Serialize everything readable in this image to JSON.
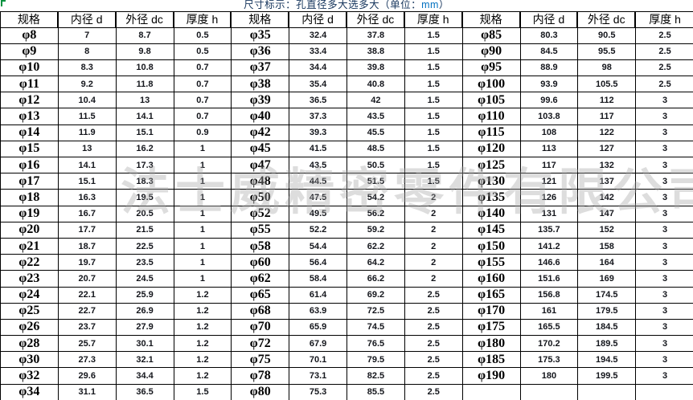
{
  "title": {
    "prefix": "尺寸标示：孔直径多大选多大（单位：",
    "unit": "mm",
    "suffix": "）"
  },
  "watermark": "法士威精密零件有限公司",
  "colors": {
    "title_navy": "#17365D",
    "unit_blue": "#0070C0",
    "border_black": "#000000",
    "watermark_gray": "#A8A8A8",
    "corner_green": "#00923F"
  },
  "table": {
    "headers": [
      "规格",
      "内径 d",
      "外径 dc",
      "厚度 h"
    ],
    "groups": [
      {
        "rows": [
          [
            "φ8",
            "7",
            "8.7",
            "0.5"
          ],
          [
            "φ9",
            "8",
            "9.8",
            "0.5"
          ],
          [
            "φ10",
            "8.3",
            "10.8",
            "0.7"
          ],
          [
            "φ11",
            "9.2",
            "11.8",
            "0.7"
          ],
          [
            "φ12",
            "10.4",
            "13",
            "0.7"
          ],
          [
            "φ13",
            "11.5",
            "14.1",
            "0.7"
          ],
          [
            "φ14",
            "11.9",
            "15.1",
            "0.9"
          ],
          [
            "φ15",
            "13",
            "16.2",
            "1"
          ],
          [
            "φ16",
            "14.1",
            "17.3",
            "1"
          ],
          [
            "φ17",
            "15.1",
            "18.3",
            "1"
          ],
          [
            "φ18",
            "16.3",
            "19.5",
            "1"
          ],
          [
            "φ19",
            "16.7",
            "20.5",
            "1"
          ],
          [
            "φ20",
            "17.7",
            "21.5",
            "1"
          ],
          [
            "φ21",
            "18.7",
            "22.5",
            "1"
          ],
          [
            "φ22",
            "19.7",
            "23.5",
            "1"
          ],
          [
            "φ23",
            "20.7",
            "24.5",
            "1"
          ],
          [
            "φ24",
            "22.1",
            "25.9",
            "1.2"
          ],
          [
            "φ25",
            "22.7",
            "26.9",
            "1.2"
          ],
          [
            "φ26",
            "23.7",
            "27.9",
            "1.2"
          ],
          [
            "φ28",
            "25.7",
            "30.1",
            "1.2"
          ],
          [
            "φ30",
            "27.3",
            "32.1",
            "1.2"
          ],
          [
            "φ32",
            "29.6",
            "34.4",
            "1.2"
          ],
          [
            "φ34",
            "31.1",
            "36.5",
            "1.5"
          ]
        ]
      },
      {
        "rows": [
          [
            "φ35",
            "32.4",
            "37.8",
            "1.5"
          ],
          [
            "φ36",
            "33.4",
            "38.8",
            "1.5"
          ],
          [
            "φ37",
            "34.4",
            "39.8",
            "1.5"
          ],
          [
            "φ38",
            "35.4",
            "40.8",
            "1.5"
          ],
          [
            "φ39",
            "36.5",
            "42",
            "1.5"
          ],
          [
            "φ40",
            "37.3",
            "43.5",
            "1.5"
          ],
          [
            "φ42",
            "39.3",
            "45.5",
            "1.5"
          ],
          [
            "φ45",
            "41.5",
            "48.5",
            "1.5"
          ],
          [
            "φ47",
            "43.5",
            "50.5",
            "1.5"
          ],
          [
            "φ48",
            "44.5",
            "51.5",
            "1.5"
          ],
          [
            "φ50",
            "47.5",
            "54.2",
            "2"
          ],
          [
            "φ52",
            "49.5",
            "56.2",
            "2"
          ],
          [
            "φ55",
            "52.2",
            "59.2",
            "2"
          ],
          [
            "φ58",
            "54.4",
            "62.2",
            "2"
          ],
          [
            "φ60",
            "56.4",
            "64.2",
            "2"
          ],
          [
            "φ62",
            "58.4",
            "66.2",
            "2"
          ],
          [
            "φ65",
            "61.4",
            "69.2",
            "2.5"
          ],
          [
            "φ68",
            "63.9",
            "72.5",
            "2.5"
          ],
          [
            "φ70",
            "65.9",
            "74.5",
            "2.5"
          ],
          [
            "φ72",
            "67.9",
            "76.5",
            "2.5"
          ],
          [
            "φ75",
            "70.1",
            "79.5",
            "2.5"
          ],
          [
            "φ78",
            "73.1",
            "82.5",
            "2.5"
          ],
          [
            "φ80",
            "75.3",
            "85.5",
            "2.5"
          ]
        ]
      },
      {
        "rows": [
          [
            "φ85",
            "80.3",
            "90.5",
            "2.5"
          ],
          [
            "φ90",
            "84.5",
            "95.5",
            "2.5"
          ],
          [
            "φ95",
            "88.9",
            "98",
            "2.5"
          ],
          [
            "φ100",
            "93.9",
            "105.5",
            "2.5"
          ],
          [
            "φ105",
            "99.6",
            "112",
            "3"
          ],
          [
            "φ110",
            "103.8",
            "117",
            "3"
          ],
          [
            "φ115",
            "108",
            "122",
            "3"
          ],
          [
            "φ120",
            "113",
            "127",
            "3"
          ],
          [
            "φ125",
            "117",
            "132",
            "3"
          ],
          [
            "φ130",
            "121",
            "137",
            "3"
          ],
          [
            "φ135",
            "126",
            "142",
            "3"
          ],
          [
            "φ140",
            "131",
            "147",
            "3"
          ],
          [
            "φ145",
            "135.7",
            "152",
            "3"
          ],
          [
            "φ150",
            "141.2",
            "158",
            "3"
          ],
          [
            "φ155",
            "146.6",
            "164",
            "3"
          ],
          [
            "φ160",
            "151.6",
            "169",
            "3"
          ],
          [
            "φ165",
            "156.8",
            "174.5",
            "3"
          ],
          [
            "φ170",
            "161",
            "179.5",
            "3"
          ],
          [
            "φ175",
            "165.5",
            "184.5",
            "3"
          ],
          [
            "φ180",
            "170.2",
            "189.5",
            "3"
          ],
          [
            "φ185",
            "175.3",
            "194.5",
            "3"
          ],
          [
            "φ190",
            "180",
            "199.5",
            "3"
          ],
          [
            "",
            "",
            "",
            ""
          ]
        ]
      }
    ]
  }
}
